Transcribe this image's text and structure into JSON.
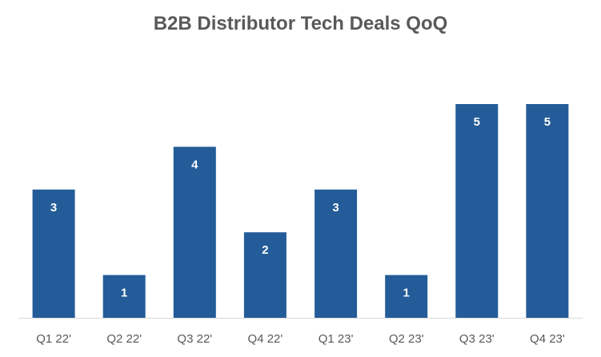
{
  "chart_data": {
    "type": "bar",
    "title": "B2B Distributor Tech Deals QoQ",
    "xlabel": "",
    "ylabel": "",
    "categories": [
      "Q1 22'",
      "Q2 22'",
      "Q3 22'",
      "Q4 22'",
      "Q1 23'",
      "Q2 23'",
      "Q3 23'",
      "Q4 23'"
    ],
    "values": [
      3,
      1,
      4,
      2,
      3,
      1,
      5,
      5
    ],
    "ylim": [
      0,
      5
    ],
    "grid": false,
    "legend": "none",
    "colors": {
      "bar": "#235C98",
      "axis": "#D9D9D9",
      "title": "#595959",
      "tick": "#595959",
      "data_label": "#FFFFFF"
    }
  }
}
